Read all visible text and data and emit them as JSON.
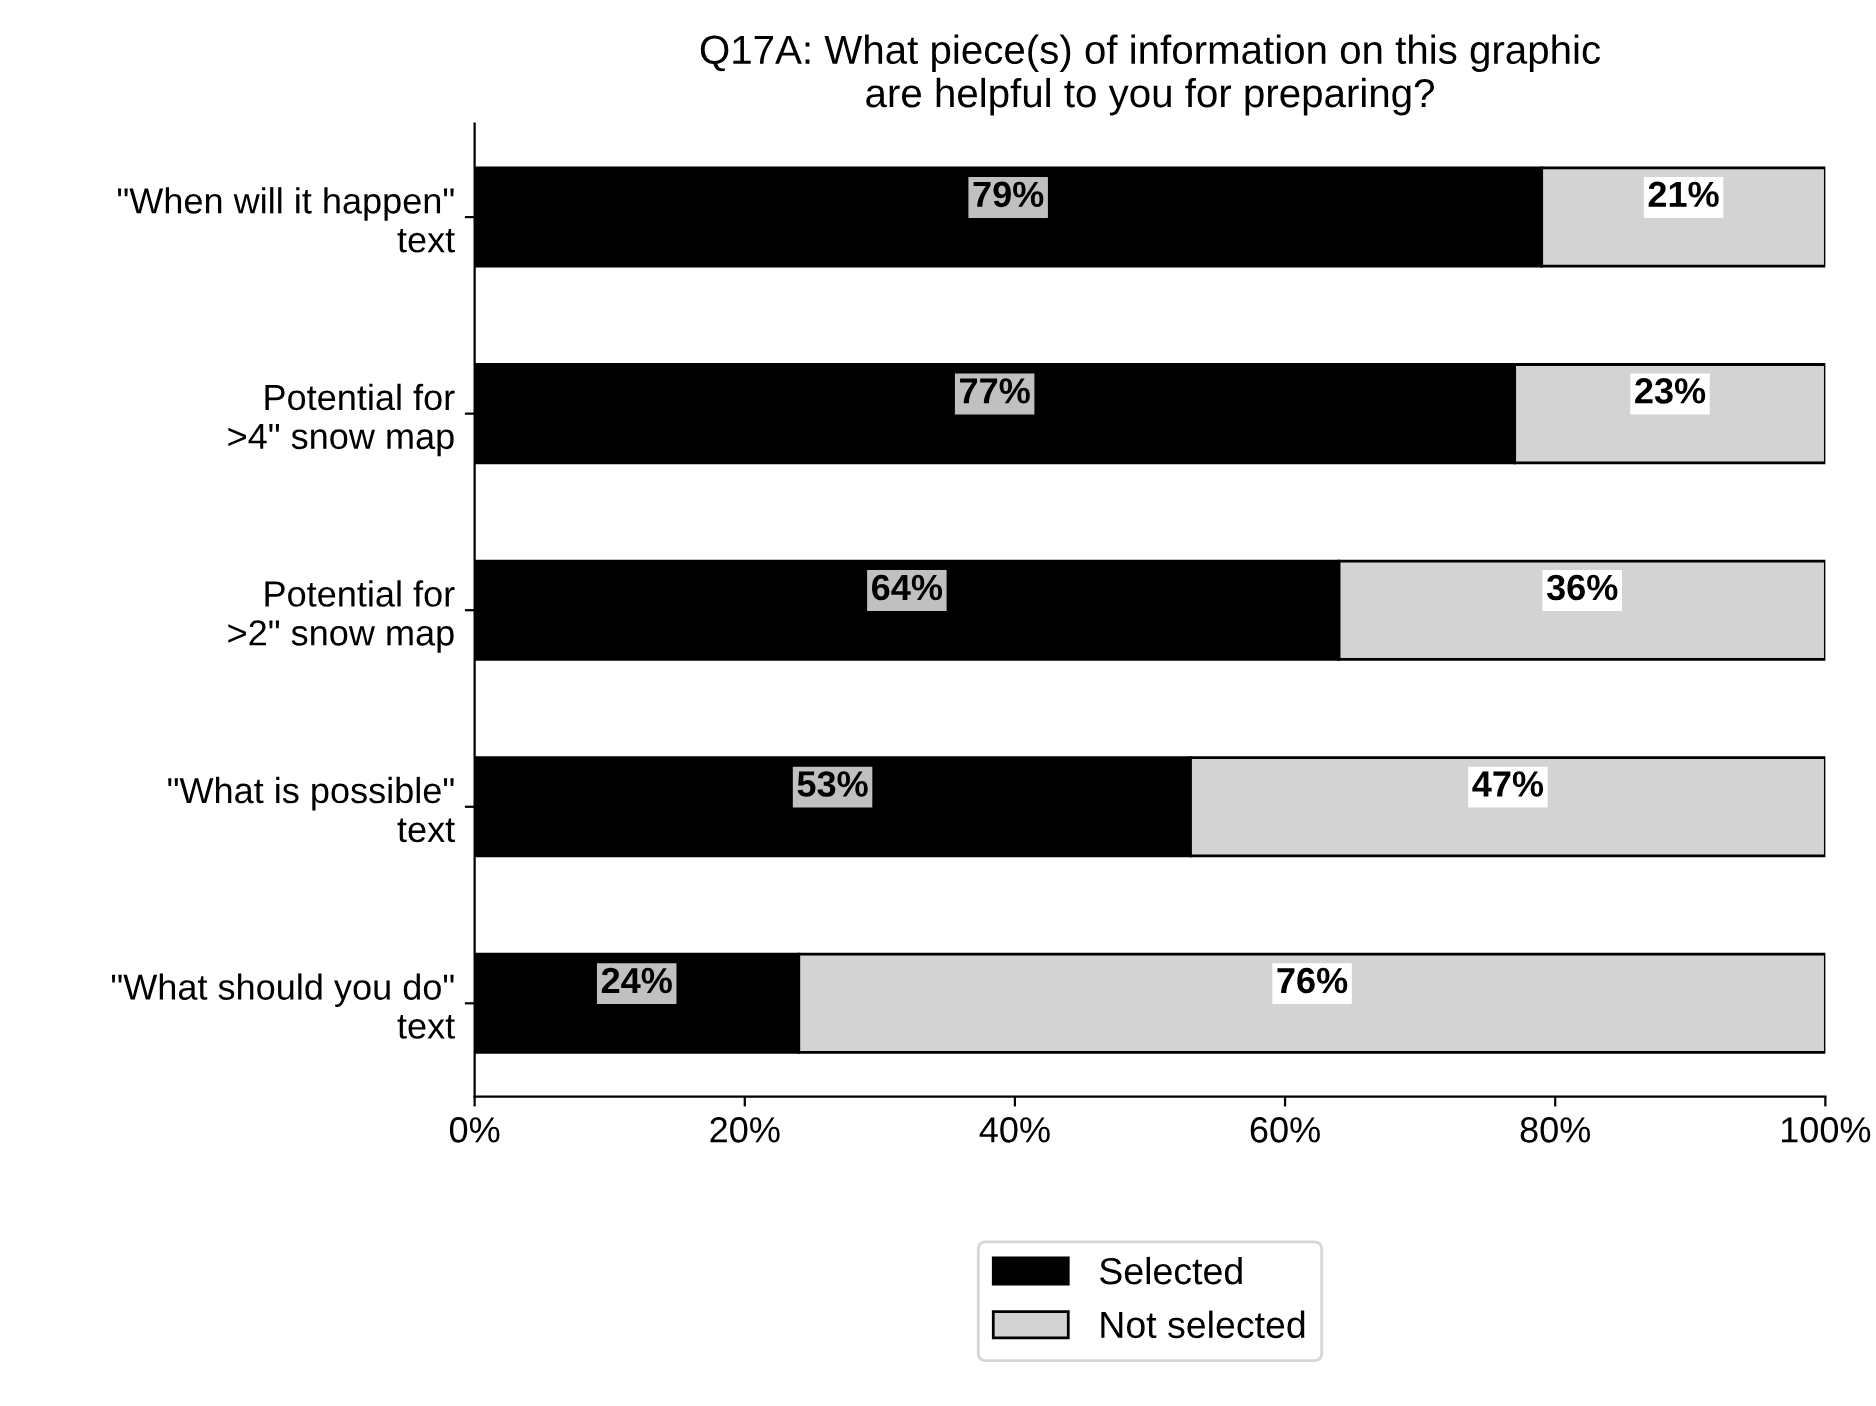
{
  "chart_data": {
    "type": "bar",
    "orientation": "horizontal",
    "stacked": true,
    "title": "Q17A: What piece(s) of information on this graphic\nare helpful to you for preparing?",
    "categories": [
      "\"When will it happen\"\ntext",
      "Potential for\n>4\" snow map",
      "Potential for\n>2\" snow map",
      "\"What is possible\"\ntext",
      "\"What should you do\"\ntext"
    ],
    "series": [
      {
        "name": "Selected",
        "color": "#000000",
        "values": [
          79,
          77,
          64,
          53,
          24
        ],
        "value_labels": [
          "79%",
          "77%",
          "64%",
          "53%",
          "24%"
        ]
      },
      {
        "name": "Not selected",
        "color": "#d3d3d3",
        "values": [
          21,
          23,
          36,
          47,
          76
        ],
        "value_labels": [
          "21%",
          "23%",
          "36%",
          "47%",
          "76%"
        ]
      }
    ],
    "xlim": [
      0,
      100
    ],
    "xticks": [
      {
        "value": 0,
        "label": "0%"
      },
      {
        "value": 20,
        "label": "20%"
      },
      {
        "value": 40,
        "label": "40%"
      },
      {
        "value": 60,
        "label": "60%"
      },
      {
        "value": 80,
        "label": "80%"
      },
      {
        "value": 100,
        "label": "100%"
      }
    ],
    "grid": false,
    "legend": "bottom"
  }
}
